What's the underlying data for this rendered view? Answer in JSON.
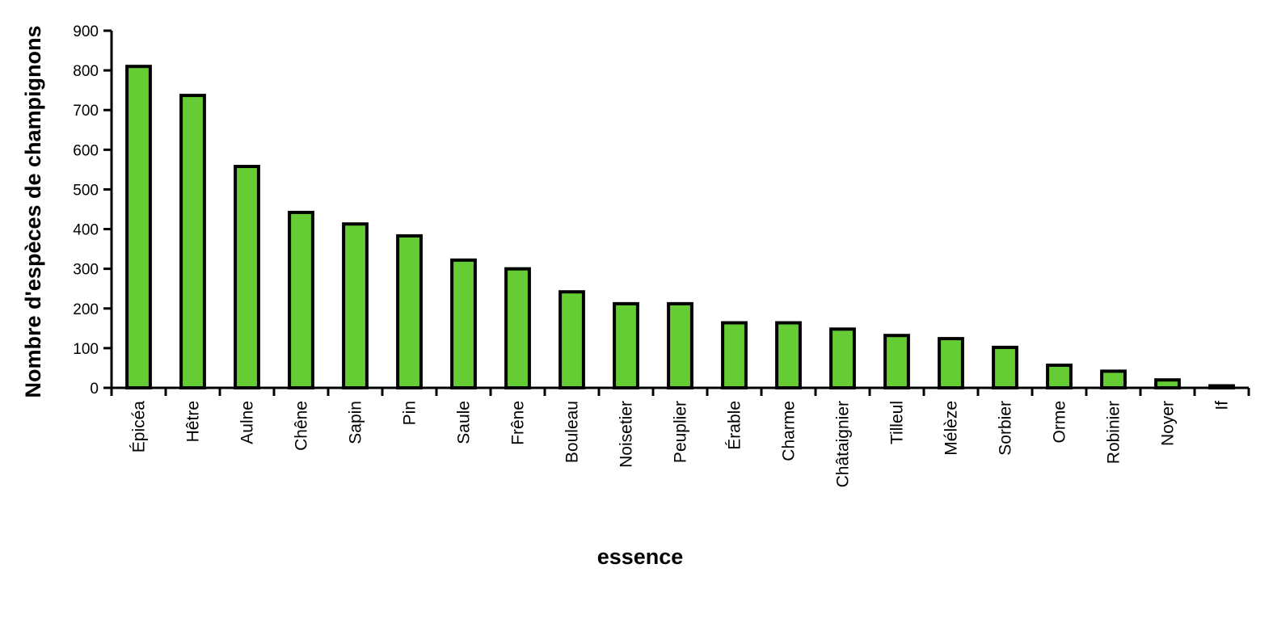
{
  "chart_data": {
    "type": "bar",
    "xlabel": "essence",
    "ylabel": "Nombre d'espèces de champignons",
    "ylim": [
      0,
      900
    ],
    "yticks": [
      0,
      100,
      200,
      300,
      400,
      500,
      600,
      700,
      800,
      900
    ],
    "grid": false,
    "bar_color": "#66cc33",
    "bar_edge_color": "#000000",
    "categories": [
      "Épicéa",
      "Hêtre",
      "Aulne",
      "Chêne",
      "Sapin",
      "Pin",
      "Saule",
      "Frêne",
      "Bouleau",
      "Noisetier",
      "Peuplier",
      "Érable",
      "Charme",
      "Châtaignier",
      "Tilleul",
      "Mélèze",
      "Sorbier",
      "Orme",
      "Robinier",
      "Noyer",
      "If"
    ],
    "values": [
      810,
      737,
      558,
      442,
      413,
      383,
      322,
      300,
      242,
      212,
      212,
      164,
      164,
      148,
      132,
      124,
      102,
      57,
      42,
      20,
      5
    ]
  }
}
